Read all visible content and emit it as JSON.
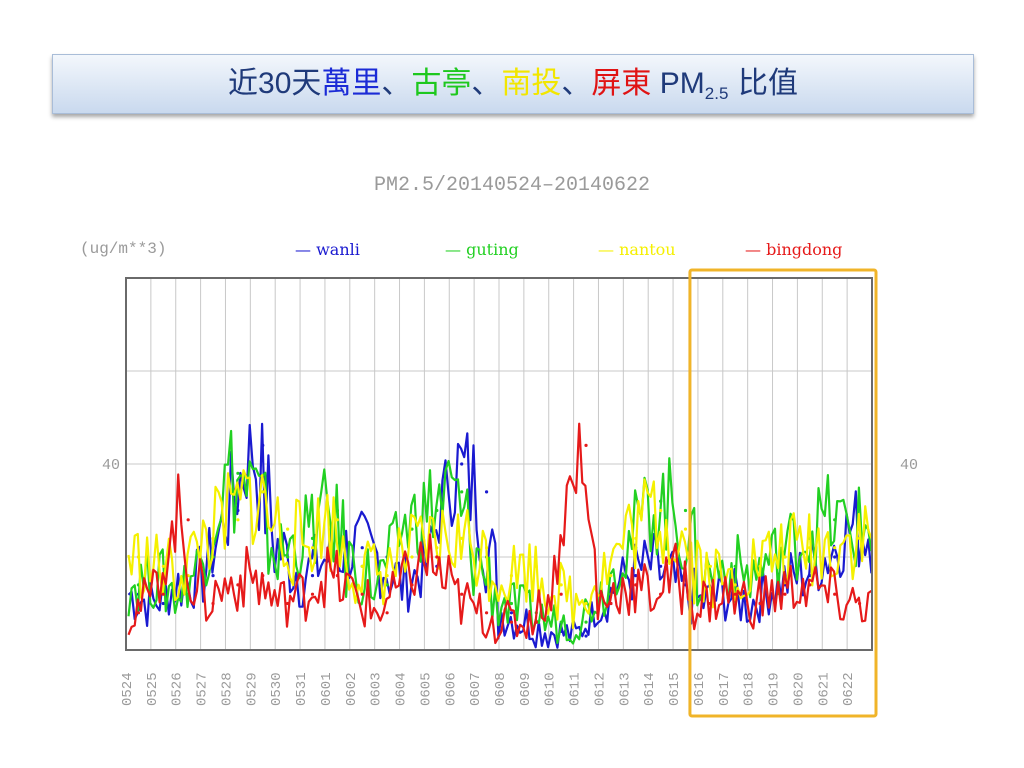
{
  "slide": {
    "title_parts": [
      {
        "text": "近",
        "color": "#1f3a7a",
        "font": "serif"
      },
      {
        "text": "30",
        "color": "#1f3a7a",
        "font": "sans"
      },
      {
        "text": "天",
        "color": "#1f3a7a",
        "font": "serif"
      },
      {
        "text": "萬里",
        "color": "#1b2bd6",
        "font": "serif"
      },
      {
        "text": "、",
        "color": "#1f3a7a",
        "font": "serif"
      },
      {
        "text": "古亭",
        "color": "#1ec81e",
        "font": "serif"
      },
      {
        "text": "、",
        "color": "#1f3a7a",
        "font": "serif"
      },
      {
        "text": "南投",
        "color": "#f2e600",
        "font": "serif"
      },
      {
        "text": "、",
        "color": "#1f3a7a",
        "font": "serif"
      },
      {
        "text": "屏東",
        "color": "#e01414",
        "font": "serif"
      },
      {
        "text": " PM",
        "color": "#1f3a7a",
        "font": "sans"
      },
      {
        "text": "2.5",
        "color": "#1f3a7a",
        "font": "sub"
      },
      {
        "text": " 比值",
        "color": "#1f3a7a",
        "font": "serif"
      }
    ]
  },
  "chart_data": {
    "type": "line",
    "title": "PM2.5/20140524–20140622",
    "ylabel": "(ug/m**3)",
    "y_tick_label": "40",
    "ylim": [
      0,
      80
    ],
    "grid": true,
    "legend_position": "top",
    "highlight": {
      "from": "0616",
      "to": "0622",
      "color": "#f0b429"
    },
    "categories": [
      "0524",
      "0525",
      "0526",
      "0527",
      "0528",
      "0529",
      "0530",
      "0531",
      "0601",
      "0602",
      "0603",
      "0604",
      "0605",
      "0606",
      "0607",
      "0608",
      "0609",
      "0610",
      "0611",
      "0612",
      "0613",
      "0614",
      "0615",
      "0616",
      "0617",
      "0618",
      "0619",
      "0620",
      "0621",
      "0622"
    ],
    "series": [
      {
        "name": "wanli",
        "color": "#1a1ad0",
        "values": [
          12,
          10,
          14,
          16,
          30,
          44,
          22,
          16,
          20,
          22,
          20,
          14,
          18,
          40,
          34,
          8,
          6,
          4,
          3,
          10,
          16,
          18,
          14,
          10,
          12,
          10,
          14,
          16,
          20,
          26
        ]
      },
      {
        "name": "guting",
        "color": "#22d022",
        "values": [
          14,
          16,
          12,
          20,
          38,
          34,
          20,
          24,
          30,
          18,
          14,
          26,
          30,
          34,
          20,
          10,
          8,
          6,
          6,
          12,
          22,
          32,
          30,
          16,
          18,
          16,
          20,
          24,
          28,
          26
        ]
      },
      {
        "name": "nantou",
        "color": "#f5f000",
        "values": [
          20,
          18,
          16,
          24,
          28,
          34,
          26,
          22,
          28,
          18,
          16,
          20,
          22,
          24,
          22,
          16,
          18,
          14,
          10,
          16,
          24,
          30,
          26,
          18,
          14,
          18,
          20,
          22,
          22,
          24
        ]
      },
      {
        "name": "bingdong",
        "color": "#e61a1a",
        "values": [
          8,
          12,
          28,
          10,
          14,
          16,
          10,
          12,
          16,
          12,
          8,
          14,
          20,
          12,
          8,
          6,
          6,
          12,
          44,
          10,
          14,
          12,
          16,
          10,
          12,
          10,
          12,
          14,
          12,
          10
        ]
      }
    ]
  }
}
